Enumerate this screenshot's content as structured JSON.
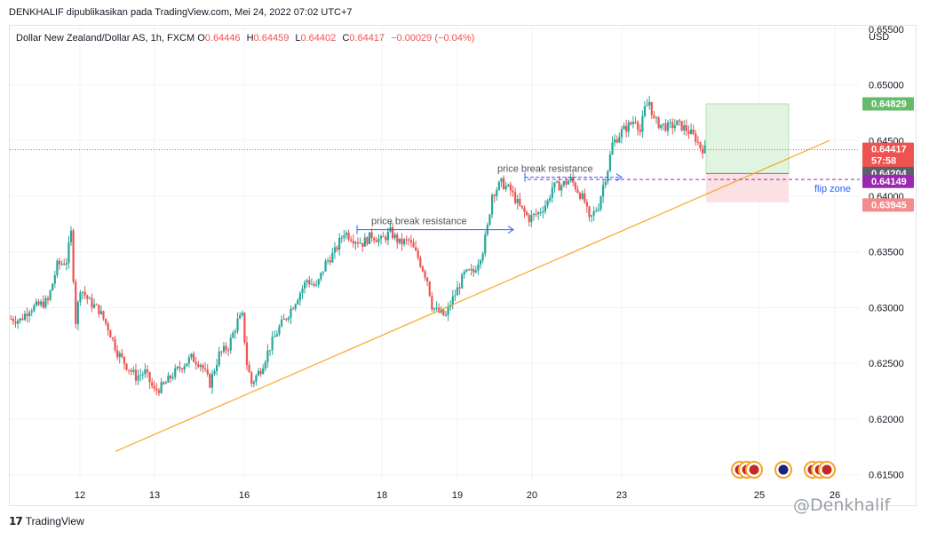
{
  "header": {
    "publisher_line": "DENKHALIF dipublikasikan pada TradingView.com, Mei 24, 2022 07:02 UTC+7"
  },
  "legend": {
    "symbol": "Dollar New Zealand/Dollar AS, 1h, FXCM",
    "open_label": "O",
    "open_value": "0.64446",
    "high_label": "H",
    "high_value": "0.64459",
    "low_label": "L",
    "low_value": "0.64402",
    "close_label": "C",
    "close_value": "0.64417",
    "change": "−0.00029 (−0.04%)"
  },
  "currency": "USD",
  "footer": {
    "brand": "TradingView",
    "watermark": "@Denkhalif"
  },
  "colors": {
    "up": "#26a69a",
    "down": "#ef5350",
    "trendline": "#f5a623",
    "target_zone": "#e1f3e1",
    "stop_zone": "#fbe1e4",
    "flip_line": "#9c27b0",
    "resistance_arrow": "#2962ff"
  },
  "chart_data": {
    "type": "candlestick",
    "symbol": "NZDUSD",
    "timeframe": "1h",
    "ylim": [
      0.6145,
      0.6553
    ],
    "y_ticks": [
      "0.65500",
      "0.65000",
      "0.64500",
      "0.64000",
      "0.63500",
      "0.63000",
      "0.62500",
      "0.62000",
      "0.61500"
    ],
    "x_ticks": [
      "12",
      "13",
      "16",
      "18",
      "19",
      "20",
      "23",
      "25",
      "26"
    ],
    "grid": true,
    "close_path": [
      [
        0,
        0.629
      ],
      [
        4,
        0.6289
      ],
      [
        8,
        0.6299
      ],
      [
        12,
        0.6302
      ],
      [
        16,
        0.6306
      ],
      [
        20,
        0.6338
      ],
      [
        24,
        0.6342
      ],
      [
        26,
        0.6367
      ],
      [
        28,
        0.6288
      ],
      [
        30,
        0.6318
      ],
      [
        34,
        0.6305
      ],
      [
        38,
        0.6298
      ],
      [
        42,
        0.6282
      ],
      [
        46,
        0.626
      ],
      [
        50,
        0.6248
      ],
      [
        54,
        0.6238
      ],
      [
        58,
        0.6242
      ],
      [
        62,
        0.6225
      ],
      [
        66,
        0.623
      ],
      [
        70,
        0.624
      ],
      [
        74,
        0.6248
      ],
      [
        78,
        0.6255
      ],
      [
        82,
        0.625
      ],
      [
        86,
        0.6232
      ],
      [
        90,
        0.6258
      ],
      [
        94,
        0.6265
      ],
      [
        98,
        0.6288
      ],
      [
        100,
        0.6292
      ],
      [
        102,
        0.625
      ],
      [
        104,
        0.6232
      ],
      [
        108,
        0.6245
      ],
      [
        112,
        0.6265
      ],
      [
        116,
        0.6282
      ],
      [
        120,
        0.6295
      ],
      [
        124,
        0.631
      ],
      [
        128,
        0.6325
      ],
      [
        132,
        0.6318
      ],
      [
        136,
        0.634
      ],
      [
        140,
        0.635
      ],
      [
        144,
        0.6368
      ],
      [
        146,
        0.6365
      ],
      [
        148,
        0.6362
      ],
      [
        152,
        0.6358
      ],
      [
        156,
        0.6365
      ],
      [
        160,
        0.636
      ],
      [
        164,
        0.6368
      ],
      [
        168,
        0.6358
      ],
      [
        172,
        0.636
      ],
      [
        176,
        0.6345
      ],
      [
        180,
        0.6325
      ],
      [
        182,
        0.6302
      ],
      [
        184,
        0.6297
      ],
      [
        188,
        0.6292
      ],
      [
        190,
        0.6304
      ],
      [
        192,
        0.6312
      ],
      [
        196,
        0.633
      ],
      [
        200,
        0.6332
      ],
      [
        204,
        0.6352
      ],
      [
        206,
        0.6372
      ],
      [
        208,
        0.6402
      ],
      [
        212,
        0.6412
      ],
      [
        216,
        0.6405
      ],
      [
        220,
        0.639
      ],
      [
        224,
        0.638
      ],
      [
        228,
        0.6385
      ],
      [
        232,
        0.6395
      ],
      [
        234,
        0.6408
      ],
      [
        238,
        0.641
      ],
      [
        242,
        0.6415
      ],
      [
        246,
        0.6402
      ],
      [
        248,
        0.6395
      ],
      [
        250,
        0.6378
      ],
      [
        254,
        0.6392
      ],
      [
        256,
        0.641
      ],
      [
        258,
        0.6425
      ],
      [
        260,
        0.6447
      ],
      [
        264,
        0.6458
      ],
      [
        268,
        0.6465
      ],
      [
        270,
        0.647
      ],
      [
        272,
        0.6458
      ],
      [
        274,
        0.6478
      ],
      [
        276,
        0.6485
      ],
      [
        278,
        0.6468
      ],
      [
        280,
        0.6465
      ],
      [
        284,
        0.6462
      ],
      [
        288,
        0.6465
      ],
      [
        292,
        0.646
      ],
      [
        296,
        0.6452
      ],
      [
        298,
        0.6444
      ],
      [
        300,
        0.6442
      ]
    ],
    "price_tags": [
      {
        "value": "0.64829",
        "kind": "take-profit"
      },
      {
        "value": "0.64417",
        "kind": "last-price",
        "countdown": "57:58"
      },
      {
        "value": "0.64204",
        "kind": "entry"
      },
      {
        "value": "0.64149",
        "kind": "flip-zone"
      },
      {
        "value": "0.63945",
        "kind": "stop-loss"
      }
    ],
    "annotations": [
      {
        "text": "price break resistance",
        "level": 0.637
      },
      {
        "text": "price break resistance",
        "level": 0.6417
      },
      {
        "text": "flip zone",
        "level": 0.6415
      }
    ],
    "trendline": {
      "from": [
        0,
        0.6171
      ],
      "to": [
        1,
        0.645
      ]
    },
    "position": {
      "entry": 0.64204,
      "target": 0.64829,
      "stop": 0.63945
    }
  }
}
